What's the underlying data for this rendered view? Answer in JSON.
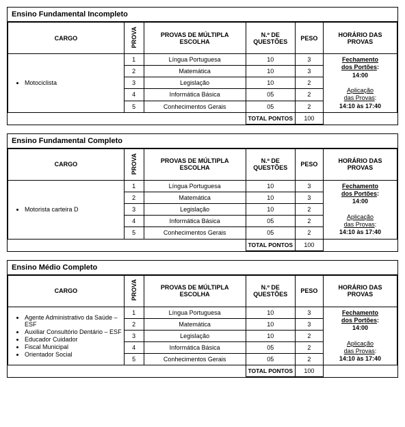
{
  "headers": {
    "cargo": "CARGO",
    "prova": "PROVA",
    "subject": "PROVAS DE MÚLTIPLA ESCOLHA",
    "questions": "N.º DE QUESTÕES",
    "weight": "PESO",
    "schedule": "HORÁRIO DAS PROVAS"
  },
  "totalLabel": "TOTAL PONTOS",
  "totalValue": "100",
  "schedule": {
    "close_label": "Fechamento dos Portões",
    "close_time": "14:00",
    "apply_label": "Aplicação das Provas",
    "apply_time": "14:10 às 17:40"
  },
  "subjects": [
    {
      "n": "1",
      "name": "Língua Portuguesa",
      "q": "10",
      "w": "3"
    },
    {
      "n": "2",
      "name": "Matemática",
      "q": "10",
      "w": "3"
    },
    {
      "n": "3",
      "name": "Legislação",
      "q": "10",
      "w": "2"
    },
    {
      "n": "4",
      "name": "Informática Básica",
      "q": "05",
      "w": "2"
    },
    {
      "n": "5",
      "name": "Conhecimentos Gerais",
      "q": "05",
      "w": "2"
    }
  ],
  "sections": [
    {
      "title": "Ensino Fundamental Incompleto",
      "cargos": [
        "Motociclista"
      ]
    },
    {
      "title": "Ensino Fundamental Completo",
      "cargos": [
        "Motorista carteira D"
      ]
    },
    {
      "title": "Ensino Médio Completo",
      "cargos": [
        "Agente Administrativo da Saúde – ESF",
        "Auxiliar Consultório Dentário – ESF",
        "Educador Cuidador",
        "Fiscal Municipal",
        "Orientador Social"
      ]
    }
  ]
}
